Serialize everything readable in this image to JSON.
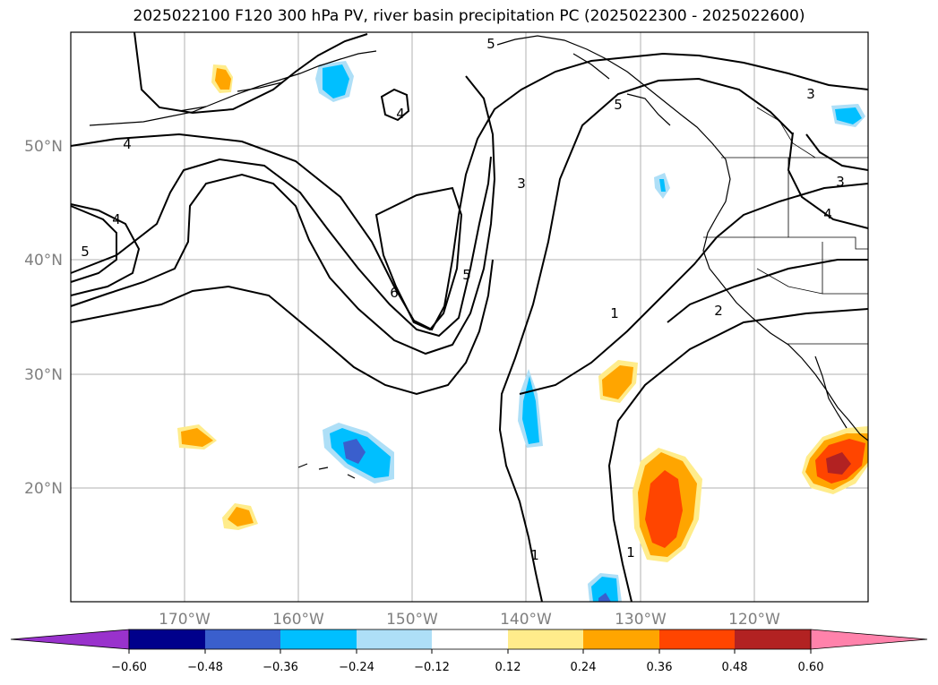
{
  "title": "2025022100 F120 300 hPa PV, river basin precipitation PC (2025022300 - 2025022600)",
  "map": {
    "lon_labels": [
      "170°W",
      "160°W",
      "150°W",
      "140°W",
      "130°W",
      "120°W"
    ],
    "lat_labels": [
      "50°N",
      "40°N",
      "30°N",
      "20°N"
    ],
    "contour_labels": [
      "5",
      "4",
      "3",
      "4",
      "4",
      "6",
      "5",
      "3",
      "1",
      "2",
      "3",
      "5",
      "4",
      "1",
      "1",
      "5"
    ]
  },
  "colorbar": {
    "tick_labels": [
      "−0.60",
      "−0.48",
      "−0.36",
      "−0.24",
      "−0.12",
      "0.12",
      "0.24",
      "0.36",
      "0.48",
      "0.60"
    ],
    "colors": [
      "#9932cc",
      "#00008b",
      "#3a5fcd",
      "#00bfff",
      "#aedff7",
      "#ffffff",
      "#ffec8b",
      "#ffa500",
      "#ff4500",
      "#b22222",
      "#ff82ab"
    ]
  }
}
